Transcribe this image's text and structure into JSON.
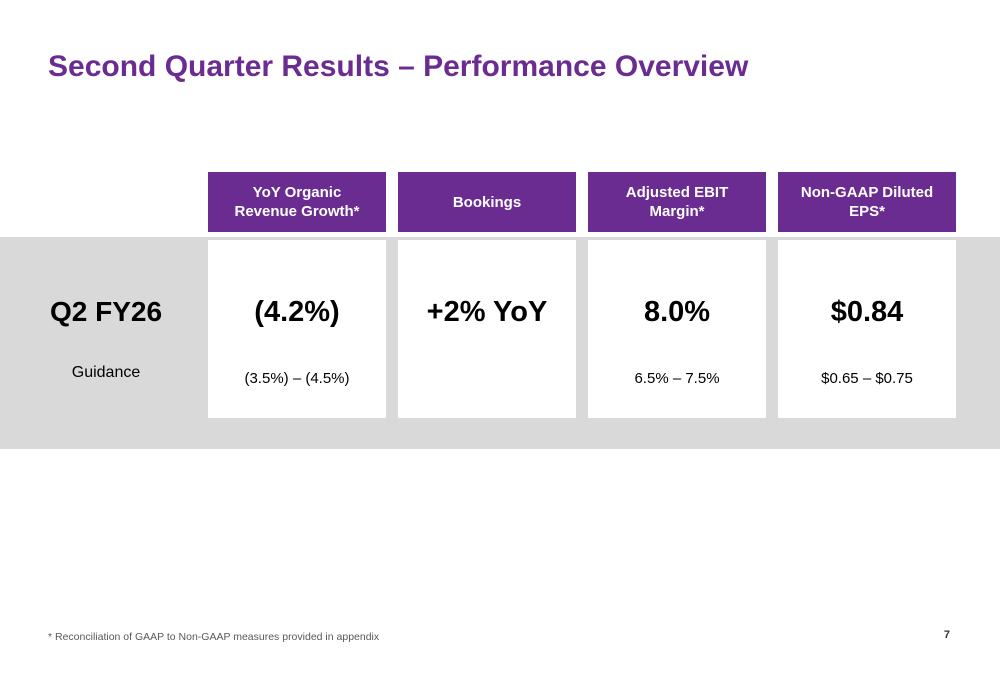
{
  "slide": {
    "title": "Second Quarter Results – Performance Overview",
    "row_label": "Q2 FY26",
    "row_sublabel": "Guidance",
    "footnote": "* Reconciliation of GAAP to Non-GAAP measures provided in appendix",
    "page_number": "7"
  },
  "columns": [
    {
      "header": "YoY Organic Revenue Growth*",
      "value": "(4.2%)",
      "guidance": "(3.5%) – (4.5%)"
    },
    {
      "header": "Bookings",
      "value": "+2% YoY",
      "guidance": ""
    },
    {
      "header": "Adjusted EBIT Margin*",
      "value": "8.0%",
      "guidance": "6.5% – 7.5%"
    },
    {
      "header": "Non-GAAP Diluted EPS*",
      "value": "$0.84",
      "guidance": "$0.65 – $0.75"
    }
  ],
  "colors": {
    "accent_purple": "#6B2C91",
    "band_gray": "#D9D9D9"
  }
}
